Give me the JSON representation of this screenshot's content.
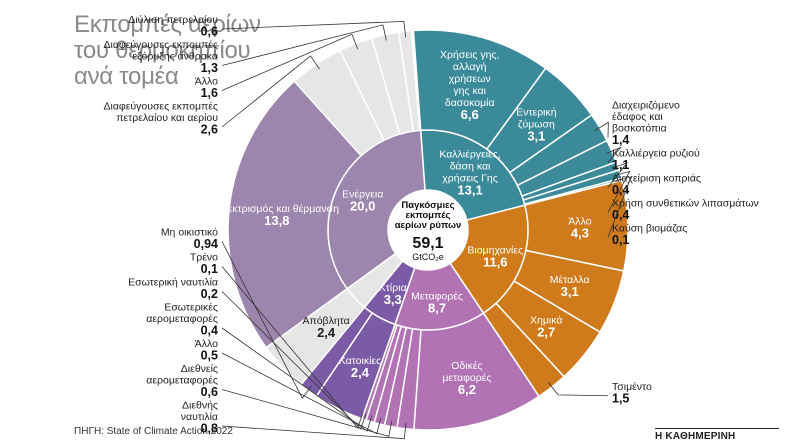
{
  "header": {
    "title_lines": [
      "Εκπομπές αερίων",
      "του θερμοκηπίου",
      "ανά τομέα"
    ]
  },
  "footer": {
    "source": "ΠΗΓΗ: State of Climate Action 2022",
    "brand": "Η ΚΑΘΗΜΕΡΙΝΗ"
  },
  "chart_data": {
    "type": "sunburst",
    "unit": "GtCO₂e",
    "start_angle_deg": -126,
    "center": {
      "label_lines": [
        "Παγκόσμιες",
        "εκπομπές",
        "αερίων ρύπων"
      ],
      "value": "59,1",
      "unit": "GtCO₂e"
    },
    "colors": {
      "energy": "#9d86ad",
      "energy_outer": "#e6e6e6",
      "buildings": "#7c5ba6",
      "transport": "#b173b3",
      "industry": "#d07b1b",
      "land": "#3b8a99"
    },
    "sectors": [
      {
        "name_lines": [
          "Ενέργεια"
        ],
        "value": 20.0,
        "value_label": "20,0",
        "color": "energy",
        "children": [
          {
            "name_lines": [
              "Ηλεκτρισμός και θέρμανση"
            ],
            "value": 13.8,
            "value_label": "13,8",
            "color": "energy"
          },
          {
            "name_lines": [
              "Διαφεύγουσες εκπομπές",
              "πετρελαίου και αερίου"
            ],
            "value": 2.6,
            "value_label": "2,6",
            "color": "energy_outer",
            "external": true
          },
          {
            "name_lines": [
              "Άλλο"
            ],
            "value": 1.6,
            "value_label": "1,6",
            "color": "energy_outer",
            "external": true
          },
          {
            "name_lines": [
              "Διαφεύγουσες εκπομπές",
              "εξόρυξης άνθρακα"
            ],
            "value": 1.3,
            "value_label": "1,3",
            "color": "energy_outer",
            "external": true
          },
          {
            "name_lines": [
              "Διύλιση πετρελαίου"
            ],
            "value": 0.6,
            "value_label": "0,6",
            "color": "energy_outer",
            "external": true
          }
        ]
      },
      {
        "name_lines": [
          "Καλλιέργειες,",
          "δάση και",
          "χρήσεις Γης"
        ],
        "value": 13.1,
        "value_label": "13,1",
        "color": "land",
        "children": [
          {
            "name_lines": [
              "Χρήσεις γης,",
              "αλλαγή",
              "χρήσεων",
              "γης και",
              "δασοκομία"
            ],
            "value": 6.6,
            "value_label": "6,6",
            "color": "land"
          },
          {
            "name_lines": [
              "Εντερική",
              "ζύμωση"
            ],
            "value": 3.1,
            "value_label": "3,1",
            "color": "land"
          },
          {
            "name_lines": [
              "Διαχειριζόμενο",
              "έδαφος και",
              "βοσκοτόπια"
            ],
            "value": 1.4,
            "value_label": "1,4",
            "color": "land",
            "external": true
          },
          {
            "name_lines": [
              "Καλλιέργεια ρυζιού"
            ],
            "value": 1.1,
            "value_label": "1,1",
            "color": "land",
            "external": true
          },
          {
            "name_lines": [
              "Διαχείριση κοπριάς"
            ],
            "value": 0.4,
            "value_label": "0,4",
            "color": "land",
            "external": true
          },
          {
            "name_lines": [
              "Χρήση συνθετικών λιπασμάτων"
            ],
            "value": 0.4,
            "value_label": "0,4",
            "color": "land",
            "external": true
          },
          {
            "name_lines": [
              "Καύση βιομάζας"
            ],
            "value": 0.1,
            "value_label": "0,1",
            "color": "land",
            "external": true
          }
        ]
      },
      {
        "name_lines": [
          "Βιομηχανίες"
        ],
        "value": 11.6,
        "value_label": "11,6",
        "color": "industry",
        "children": [
          {
            "name_lines": [
              "Άλλο"
            ],
            "value": 4.3,
            "value_label": "4,3",
            "color": "industry"
          },
          {
            "name_lines": [
              "Μέταλλα"
            ],
            "value": 3.1,
            "value_label": "3,1",
            "color": "industry"
          },
          {
            "name_lines": [
              "Χημικά"
            ],
            "value": 2.7,
            "value_label": "2,7",
            "color": "industry"
          },
          {
            "name_lines": [
              "Τσιμέντο"
            ],
            "value": 1.5,
            "value_label": "1,5",
            "color": "industry",
            "external": true
          }
        ]
      },
      {
        "name_lines": [
          "Μεταφορές"
        ],
        "value": 8.7,
        "value_label": "8,7",
        "color": "transport",
        "children": [
          {
            "name_lines": [
              "Οδικές",
              "μεταφορές"
            ],
            "value": 6.2,
            "value_label": "6,2",
            "color": "transport"
          },
          {
            "name_lines": [
              "Διεθνής",
              "ναυτιλία"
            ],
            "value": 0.8,
            "value_label": "0,8",
            "color": "transport",
            "external": true
          },
          {
            "name_lines": [
              "Διεθνείς",
              "αερομεταφορές"
            ],
            "value": 0.6,
            "value_label": "0,6",
            "color": "transport",
            "external": true
          },
          {
            "name_lines": [
              "Άλλο"
            ],
            "value": 0.5,
            "value_label": "0,5",
            "color": "transport",
            "external": true
          },
          {
            "name_lines": [
              "Εσωτερικές",
              "αερομεταφορές"
            ],
            "value": 0.4,
            "value_label": "0,4",
            "color": "transport",
            "external": true
          },
          {
            "name_lines": [
              "Εσωτερική ναυτιλία"
            ],
            "value": 0.2,
            "value_label": "0,2",
            "color": "transport",
            "external": true
          },
          {
            "name_lines": [
              "Τρένο"
            ],
            "value": 0.1,
            "value_label": "0,1",
            "color": "transport",
            "external": true
          }
        ]
      },
      {
        "name_lines": [
          "Κτίρια"
        ],
        "value": 3.3,
        "value_label": "3,3",
        "color": "buildings",
        "children": [
          {
            "name_lines": [
              "Κατοικίες"
            ],
            "value": 2.4,
            "value_label": "2,4",
            "color": "buildings"
          },
          {
            "name_lines": [
              "Μη οικιστικό"
            ],
            "value": 0.94,
            "value_label": "0,94",
            "color": "buildings",
            "external": true
          }
        ]
      },
      {
        "name_lines": [],
        "value": 2.4,
        "value_label": "",
        "color": "energy_outer",
        "hide_inner": true,
        "children": [
          {
            "name_lines": [
              "Απόβλητα"
            ],
            "value": 2.4,
            "value_label": "2,4",
            "color": "energy_outer"
          }
        ]
      }
    ]
  }
}
